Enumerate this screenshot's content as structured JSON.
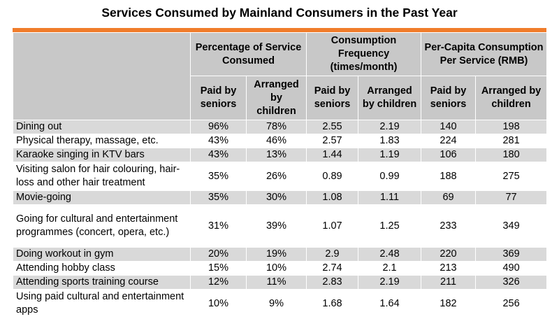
{
  "title": "Services Consumed by Mainland Consumers in the Past Year",
  "accent_color": "#f07c2b",
  "header": {
    "group1": "Percentage of Service Consumed",
    "group2": "Consumption Frequency (times/month)",
    "group3": "Per-Capita Consumption Per Service (RMB)",
    "sub_paid": "Paid by seniors",
    "sub_arranged": "Arranged by children"
  },
  "rows": [
    {
      "service": "Dining out",
      "pct_paid": "96%",
      "pct_arr": "78%",
      "freq_paid": "2.55",
      "freq_arr": "2.19",
      "rmb_paid": "140",
      "rmb_arr": "198"
    },
    {
      "service": "Physical therapy, massage, etc.",
      "pct_paid": "43%",
      "pct_arr": "46%",
      "freq_paid": "2.57",
      "freq_arr": "1.83",
      "rmb_paid": "224",
      "rmb_arr": "281"
    },
    {
      "service": "Karaoke singing in KTV bars",
      "pct_paid": "43%",
      "pct_arr": "13%",
      "freq_paid": "1.44",
      "freq_arr": "1.19",
      "rmb_paid": "106",
      "rmb_arr": "180"
    },
    {
      "service": "Visiting salon for hair colouring, hair-loss and other hair treatment",
      "pct_paid": "35%",
      "pct_arr": "26%",
      "freq_paid": "0.89",
      "freq_arr": "0.99",
      "rmb_paid": "188",
      "rmb_arr": "275"
    },
    {
      "service": "Movie-going",
      "pct_paid": "35%",
      "pct_arr": "30%",
      "freq_paid": "1.08",
      "freq_arr": "1.11",
      "rmb_paid": "69",
      "rmb_arr": "77"
    },
    {
      "service": "Going for cultural and entertainment programmes (concert, opera, etc.)",
      "pct_paid": "31%",
      "pct_arr": "39%",
      "freq_paid": "1.07",
      "freq_arr": "1.25",
      "rmb_paid": "233",
      "rmb_arr": "349"
    },
    {
      "service": "Doing workout in gym",
      "pct_paid": "20%",
      "pct_arr": "19%",
      "freq_paid": "2.9",
      "freq_arr": "2.48",
      "rmb_paid": "220",
      "rmb_arr": "369"
    },
    {
      "service": "Attending hobby class",
      "pct_paid": "15%",
      "pct_arr": "10%",
      "freq_paid": "2.74",
      "freq_arr": "2.1",
      "rmb_paid": "213",
      "rmb_arr": "490"
    },
    {
      "service": "Attending sports training course",
      "pct_paid": "12%",
      "pct_arr": "11%",
      "freq_paid": "2.83",
      "freq_arr": "2.19",
      "rmb_paid": "211",
      "rmb_arr": "326"
    },
    {
      "service": "Using paid cultural and entertainment apps",
      "pct_paid": "10%",
      "pct_arr": "9%",
      "freq_paid": "1.68",
      "freq_arr": "1.64",
      "rmb_paid": "182",
      "rmb_arr": "256"
    }
  ]
}
